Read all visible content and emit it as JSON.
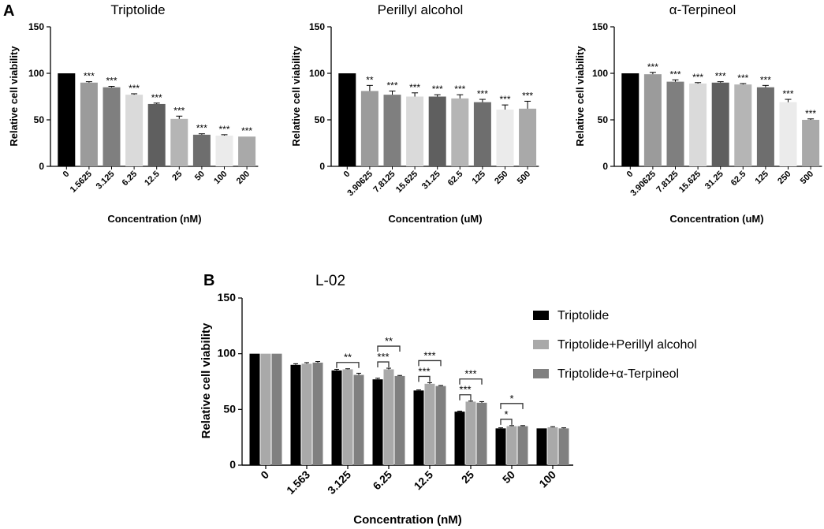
{
  "figure": {
    "panel_labels": [
      "A",
      "B"
    ]
  },
  "chart_data": [
    {
      "type": "bar",
      "panel": "A",
      "title": "Triptolide",
      "xlabel": "Concentration (nM)",
      "ylabel": "Relative cell viability",
      "ylim": [
        0,
        150
      ],
      "yticks": [
        0,
        50,
        100,
        150
      ],
      "categories": [
        "0",
        "1.5625",
        "3.125",
        "6.25",
        "12.5",
        "25",
        "50",
        "100",
        "200"
      ],
      "values": [
        100,
        90,
        85,
        77,
        67,
        51,
        34,
        33,
        32
      ],
      "errors": [
        0,
        1,
        1,
        1,
        1,
        3,
        1,
        1,
        0
      ],
      "significance": [
        "",
        "***",
        "***",
        "***",
        "***",
        "***",
        "***",
        "***",
        "***"
      ],
      "colors": [
        "#000000",
        "#9b9b9b",
        "#7f7f7f",
        "#dadada",
        "#5f5f5f",
        "#b5b5b5",
        "#6e6e6e",
        "#ebebeb",
        "#a9a9a9"
      ]
    },
    {
      "type": "bar",
      "panel": "A",
      "title": "Perillyl alcohol",
      "xlabel": "Concentration (uM)",
      "ylabel": "Relative cell viability",
      "ylim": [
        0,
        150
      ],
      "yticks": [
        0,
        50,
        100,
        150
      ],
      "categories": [
        "0",
        "3.90625",
        "7.8125",
        "15.625",
        "31.25",
        "62.5",
        "125",
        "250",
        "500"
      ],
      "values": [
        100,
        81,
        77,
        75,
        75,
        73,
        69,
        61,
        62
      ],
      "errors": [
        0,
        6,
        4,
        4,
        2,
        4,
        3,
        5,
        8
      ],
      "significance": [
        "",
        "**",
        "***",
        "***",
        "***",
        "***",
        "***",
        "***",
        "***"
      ],
      "colors": [
        "#000000",
        "#9b9b9b",
        "#7f7f7f",
        "#dadada",
        "#5f5f5f",
        "#b5b5b5",
        "#6e6e6e",
        "#ebebeb",
        "#a9a9a9"
      ]
    },
    {
      "type": "bar",
      "panel": "A",
      "title": "α-Terpineol",
      "xlabel": "Concentration (uM)",
      "ylabel": "Relative cell viability",
      "ylim": [
        0,
        150
      ],
      "yticks": [
        0,
        50,
        100,
        150
      ],
      "categories": [
        "0",
        "3.90625",
        "7.8125",
        "15.625",
        "31.25",
        "62.5",
        "125",
        "250",
        "500"
      ],
      "values": [
        100,
        99,
        91,
        89,
        90,
        88,
        85,
        69,
        50
      ],
      "errors": [
        0,
        2,
        2,
        1,
        1,
        1,
        2,
        3,
        1
      ],
      "significance": [
        "",
        "***",
        "***",
        "***",
        "***",
        "***",
        "***",
        "***",
        "***"
      ],
      "colors": [
        "#000000",
        "#9b9b9b",
        "#7f7f7f",
        "#dadada",
        "#5f5f5f",
        "#b5b5b5",
        "#6e6e6e",
        "#ebebeb",
        "#a9a9a9"
      ]
    },
    {
      "type": "bar",
      "panel": "B",
      "title": "L-02",
      "xlabel": "Concentration (nM)",
      "ylabel": "Relative cell viability",
      "ylim": [
        0,
        150
      ],
      "yticks": [
        0,
        50,
        100,
        150
      ],
      "categories": [
        "0",
        "1.563",
        "3.125",
        "6.25",
        "12.5",
        "25",
        "50",
        "100"
      ],
      "series": [
        {
          "name": "Triptolide",
          "color": "#000000",
          "values": [
            100,
            90,
            85,
            77,
            67,
            48,
            33,
            33
          ],
          "errors": [
            0,
            1,
            1,
            1,
            0.5,
            0.5,
            0.5,
            0
          ]
        },
        {
          "name": "Triptolide+Perillyl alcohol",
          "color": "#a9a9a9",
          "values": [
            100,
            91,
            86,
            86,
            73,
            57,
            35,
            34
          ],
          "errors": [
            0,
            1,
            0.5,
            1,
            1,
            0.5,
            0.5,
            0.5
          ]
        },
        {
          "name": "Triptolide+α-Terpineol",
          "color": "#808080",
          "values": [
            100,
            92,
            81,
            80,
            71,
            56,
            35,
            33
          ],
          "errors": [
            0,
            1,
            1.5,
            0.5,
            0.5,
            1,
            0.5,
            0.5
          ]
        }
      ],
      "brackets": [
        {
          "category": 2,
          "from": 0,
          "to": 2,
          "label": "**",
          "level": 0
        },
        {
          "category": 3,
          "from": 0,
          "to": 1,
          "label": "***",
          "level": 0
        },
        {
          "category": 3,
          "from": 0,
          "to": 2,
          "label": "**",
          "level": 1
        },
        {
          "category": 4,
          "from": 0,
          "to": 1,
          "label": "***",
          "level": 0
        },
        {
          "category": 4,
          "from": 0,
          "to": 2,
          "label": "***",
          "level": 1
        },
        {
          "category": 5,
          "from": 0,
          "to": 1,
          "label": "***",
          "level": 0
        },
        {
          "category": 5,
          "from": 0,
          "to": 2,
          "label": "***",
          "level": 1
        },
        {
          "category": 6,
          "from": 0,
          "to": 1,
          "label": "*",
          "level": 0
        },
        {
          "category": 6,
          "from": 0,
          "to": 2,
          "label": "*",
          "level": 1
        }
      ],
      "legend": "right"
    }
  ]
}
